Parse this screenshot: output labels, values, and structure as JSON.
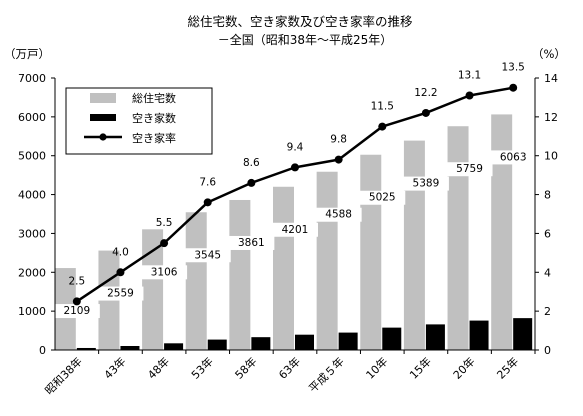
{
  "chart_data": {
    "type": "bar",
    "title": "総住宅数、空き家数及び空き家率の推移",
    "subtitle": "－全国（昭和38年～平成25年）",
    "y_left_unit": "（万戸）",
    "y_right_unit": "（%）",
    "categories": [
      "昭和38年",
      "43年",
      "48年",
      "53年",
      "58年",
      "63年",
      "平成５年",
      "10年",
      "15年",
      "20年",
      "25年"
    ],
    "y_left_ticks": [
      "0",
      "1000",
      "2000",
      "3000",
      "4000",
      "5000",
      "6000",
      "7000"
    ],
    "y_right_ticks": [
      "0",
      "2",
      "4",
      "6",
      "8",
      "10",
      "12",
      "14"
    ],
    "ylim_left": [
      0,
      7000
    ],
    "ylim_right": [
      0,
      14
    ],
    "grid": false,
    "legend_position": "top-left",
    "series": [
      {
        "name": "総住宅数",
        "kind": "bar",
        "axis": "left",
        "color": "#c0c0c0",
        "values": [
          2109,
          2559,
          3106,
          3545,
          3861,
          4201,
          4588,
          5025,
          5389,
          5759,
          6063
        ],
        "labels": [
          "2109",
          "2559",
          "3106",
          "3545",
          "3861",
          "4201",
          "4588",
          "5025",
          "5389",
          "5759",
          "6063"
        ]
      },
      {
        "name": "空き家数",
        "kind": "bar",
        "axis": "left",
        "color": "#000000",
        "values": [
          52,
          103,
          172,
          268,
          330,
          394,
          448,
          576,
          659,
          757,
          820
        ]
      },
      {
        "name": "空き家率",
        "kind": "line",
        "axis": "right",
        "color": "#000000",
        "values": [
          2.5,
          4.0,
          5.5,
          7.6,
          8.6,
          9.4,
          9.8,
          11.5,
          12.2,
          13.1,
          13.5
        ],
        "labels": [
          "2.5",
          "4.0",
          "5.5",
          "7.6",
          "8.6",
          "9.4",
          "9.8",
          "11.5",
          "12.2",
          "13.1",
          "13.5"
        ]
      }
    ]
  }
}
